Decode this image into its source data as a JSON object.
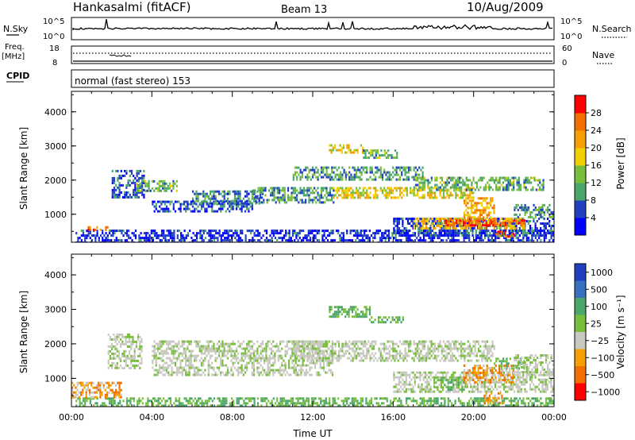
{
  "header": {
    "station": "Hankasalmi (fitACF)",
    "beam": "Beam 13",
    "date": "10/Aug/2009"
  },
  "top_panels": {
    "nsky": {
      "label": "N.Sky",
      "right_label": "N.Search",
      "ticks_left": [
        "10^5",
        "10^0"
      ],
      "ticks_right": [
        "10^5",
        "10^0"
      ]
    },
    "freq": {
      "label": "Freq.",
      "unit": "[MHz]",
      "ticks_left": [
        "18",
        "8"
      ],
      "ticks_right": [
        "60",
        "0"
      ],
      "right_label": "Nave"
    },
    "cpid": {
      "label": "CPID",
      "text": "normal (fast stereo) 153"
    }
  },
  "colors": {
    "power_scale": [
      "#0000ff",
      "#2040c0",
      "#4aa66a",
      "#78be3c",
      "#f0d000",
      "#f5a000",
      "#f07000",
      "#ff0000"
    ],
    "velocity_scale": [
      "#2040c0",
      "#3a70c0",
      "#4aa66a",
      "#78be3c",
      "#c8c8c0",
      "#f5a000",
      "#f07000",
      "#ff0000"
    ],
    "scatter_gray": "#c8c8c0"
  },
  "chart_data": [
    {
      "type": "heatmap",
      "title": "",
      "quantity": "Power",
      "ylabel": "Slant Range [km]",
      "xlabel": "",
      "ylim": [
        180,
        4600
      ],
      "yticks": [
        "1000",
        "2000",
        "3000",
        "4000"
      ],
      "ytick_values": [
        1000,
        2000,
        3000,
        4000
      ],
      "xlim": [
        0,
        24
      ],
      "colorbar": {
        "label": "Power [dB]",
        "ticks": [
          "4",
          "8",
          "12",
          "16",
          "20",
          "24",
          "28"
        ],
        "tick_values": [
          4,
          8,
          12,
          16,
          20,
          24,
          28
        ],
        "range": [
          0,
          32
        ]
      },
      "regions": [
        {
          "t0": 0.2,
          "t1": 24,
          "r0": 200,
          "r1": 550,
          "level": 4
        },
        {
          "t0": 0.8,
          "t1": 1.8,
          "r0": 550,
          "r1": 650,
          "level": 26
        },
        {
          "t0": 2.0,
          "t1": 3.6,
          "r0": 1500,
          "r1": 2300,
          "level": 6
        },
        {
          "t0": 3.2,
          "t1": 5.2,
          "r0": 1700,
          "r1": 2000,
          "level": 12
        },
        {
          "t0": 4.0,
          "t1": 9.0,
          "r0": 1100,
          "r1": 1400,
          "level": 6
        },
        {
          "t0": 6.0,
          "t1": 9.5,
          "r0": 1300,
          "r1": 1700,
          "level": 8
        },
        {
          "t0": 9.0,
          "t1": 13.0,
          "r0": 1350,
          "r1": 1800,
          "level": 10
        },
        {
          "t0": 11.0,
          "t1": 17.5,
          "r0": 2000,
          "r1": 2400,
          "level": 10
        },
        {
          "t0": 12.8,
          "t1": 14.5,
          "r0": 2800,
          "r1": 3050,
          "level": 18
        },
        {
          "t0": 14.5,
          "t1": 16.2,
          "r0": 2650,
          "r1": 2900,
          "level": 12
        },
        {
          "t0": 13.0,
          "t1": 20.0,
          "r0": 1500,
          "r1": 1800,
          "level": 18
        },
        {
          "t0": 17.0,
          "t1": 23.5,
          "r0": 1700,
          "r1": 2100,
          "level": 12
        },
        {
          "t0": 16.0,
          "t1": 24.0,
          "r0": 400,
          "r1": 900,
          "level": 6
        },
        {
          "t0": 17.0,
          "t1": 22.5,
          "r0": 600,
          "r1": 900,
          "level": 20
        },
        {
          "t0": 18.5,
          "t1": 22.5,
          "r0": 650,
          "r1": 850,
          "level": 28
        },
        {
          "t0": 19.5,
          "t1": 21.0,
          "r0": 850,
          "r1": 1500,
          "level": 22
        },
        {
          "t0": 21.0,
          "t1": 22.0,
          "r0": 380,
          "r1": 520,
          "level": 26
        },
        {
          "t0": 22.0,
          "t1": 24.0,
          "r0": 900,
          "r1": 1300,
          "level": 10
        }
      ]
    },
    {
      "type": "heatmap",
      "title": "",
      "quantity": "Velocity",
      "ylabel": "Slant Range [km]",
      "xlabel": "Time UT",
      "ylim": [
        180,
        4600
      ],
      "yticks": [
        "1000",
        "2000",
        "3000",
        "4000"
      ],
      "ytick_values": [
        1000,
        2000,
        3000,
        4000
      ],
      "xlim": [
        0,
        24
      ],
      "xticks": [
        "00:00",
        "04:00",
        "08:00",
        "12:00",
        "16:00",
        "20:00",
        "00:00"
      ],
      "xtick_values": [
        0,
        4,
        8,
        12,
        16,
        20,
        24
      ],
      "colorbar": {
        "label": "Velocity [m s⁻¹]",
        "ticks": [
          "1000",
          "500",
          "100",
          "25",
          "−25",
          "−100",
          "−500",
          "−1000"
        ]
      },
      "regions": [
        {
          "t0": 0.2,
          "t1": 24,
          "r0": 200,
          "r1": 450,
          "level": "green"
        },
        {
          "t0": 0.0,
          "t1": 2.5,
          "r0": 450,
          "r1": 900,
          "level": "orange"
        },
        {
          "t0": 1.8,
          "t1": 3.5,
          "r0": 1300,
          "r1": 2300,
          "level": "gray"
        },
        {
          "t0": 4.0,
          "t1": 13.0,
          "r0": 1100,
          "r1": 2100,
          "level": "gray"
        },
        {
          "t0": 11.0,
          "t1": 21.0,
          "r0": 1500,
          "r1": 2100,
          "level": "gray"
        },
        {
          "t0": 12.8,
          "t1": 14.8,
          "r0": 2800,
          "r1": 3100,
          "level": "green"
        },
        {
          "t0": 14.8,
          "t1": 16.5,
          "r0": 2600,
          "r1": 2800,
          "level": "green"
        },
        {
          "t0": 16.0,
          "t1": 24.0,
          "r0": 600,
          "r1": 1200,
          "level": "gray"
        },
        {
          "t0": 18.0,
          "t1": 19.5,
          "r0": 700,
          "r1": 1050,
          "level": "green"
        },
        {
          "t0": 19.5,
          "t1": 22.0,
          "r0": 900,
          "r1": 1400,
          "level": "orange"
        },
        {
          "t0": 21.0,
          "t1": 22.5,
          "r0": 1300,
          "r1": 1600,
          "level": "green"
        },
        {
          "t0": 22.0,
          "t1": 24.0,
          "r0": 1200,
          "r1": 1700,
          "level": "gray"
        },
        {
          "t0": 20.5,
          "t1": 21.5,
          "r0": 300,
          "r1": 600,
          "level": "orange"
        }
      ]
    }
  ]
}
